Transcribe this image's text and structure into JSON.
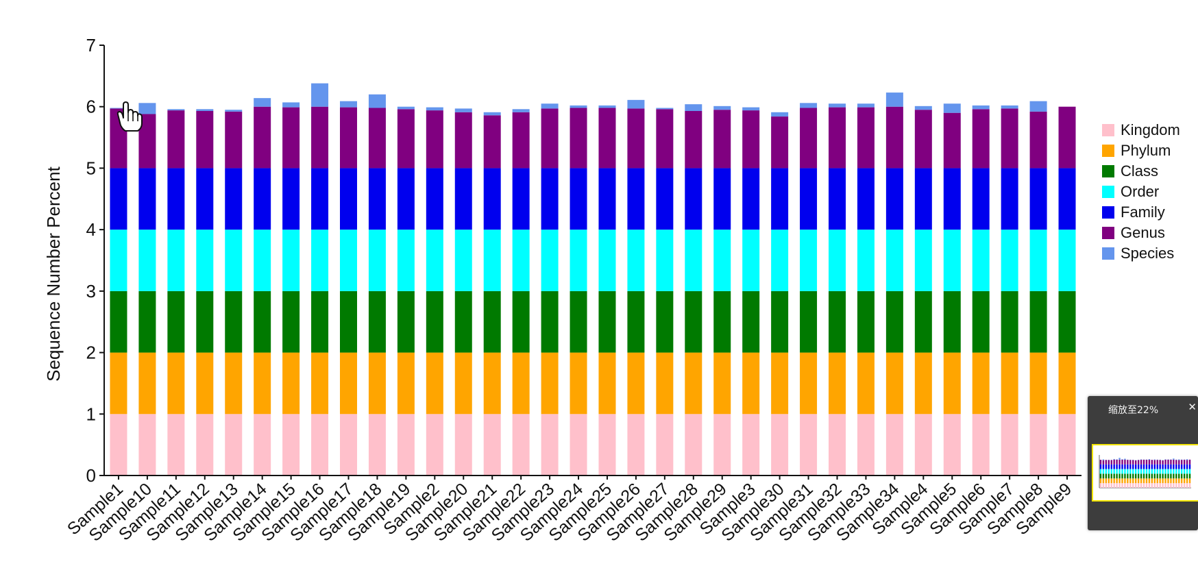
{
  "chart_data": {
    "type": "bar",
    "stacked": true,
    "title": "",
    "xlabel": "",
    "ylabel": "Sequence Number Percent",
    "ylim": [
      0,
      7
    ],
    "yticks": [
      0,
      1,
      2,
      3,
      4,
      5,
      6,
      7
    ],
    "grid": false,
    "legend_position": "right",
    "categories": [
      "Sample1",
      "Sample10",
      "Sample11",
      "Sample12",
      "Sample13",
      "Sample14",
      "Sample15",
      "Sample16",
      "Sample17",
      "Sample18",
      "Sample19",
      "Sample2",
      "Sample20",
      "Sample21",
      "Sample22",
      "Sample23",
      "Sample24",
      "Sample25",
      "Sample26",
      "Sample27",
      "Sample28",
      "Sample29",
      "Sample3",
      "Sample30",
      "Sample31",
      "Sample32",
      "Sample33",
      "Sample34",
      "Sample4",
      "Sample5",
      "Sample6",
      "Sample7",
      "Sample8",
      "Sample9"
    ],
    "series": [
      {
        "name": "Kingdom",
        "color": "#ffc0cb",
        "values": [
          1,
          1,
          1,
          1,
          1,
          1,
          1,
          1,
          1,
          1,
          1,
          1,
          1,
          1,
          1,
          1,
          1,
          1,
          1,
          1,
          1,
          1,
          1,
          1,
          1,
          1,
          1,
          1,
          1,
          1,
          1,
          1,
          1,
          1
        ]
      },
      {
        "name": "Phylum",
        "color": "#ffa500",
        "values": [
          1,
          1,
          1,
          1,
          1,
          1,
          1,
          1,
          1,
          1,
          1,
          1,
          1,
          1,
          1,
          1,
          1,
          1,
          1,
          1,
          1,
          1,
          1,
          1,
          1,
          1,
          1,
          1,
          1,
          1,
          1,
          1,
          1,
          1
        ]
      },
      {
        "name": "Class",
        "color": "#007a00",
        "values": [
          1,
          1,
          1,
          1,
          1,
          1,
          1,
          1,
          1,
          1,
          1,
          1,
          1,
          1,
          1,
          1,
          1,
          1,
          1,
          1,
          1,
          1,
          1,
          1,
          1,
          1,
          1,
          1,
          1,
          1,
          1,
          1,
          1,
          1
        ]
      },
      {
        "name": "Order",
        "color": "#00ffff",
        "values": [
          1,
          1,
          1,
          1,
          1,
          1,
          1,
          1,
          1,
          1,
          1,
          1,
          1,
          1,
          1,
          1,
          1,
          1,
          1,
          1,
          1,
          1,
          1,
          1,
          1,
          1,
          1,
          1,
          1,
          1,
          1,
          1,
          1,
          1
        ]
      },
      {
        "name": "Family",
        "color": "#0000ee",
        "values": [
          1,
          1,
          1,
          1,
          1,
          1,
          1,
          1,
          1,
          1,
          1,
          1,
          1,
          1,
          1,
          1,
          1,
          1,
          1,
          1,
          1,
          1,
          1,
          1,
          1,
          1,
          1,
          1,
          1,
          1,
          1,
          1,
          1,
          1
        ]
      },
      {
        "name": "Genus",
        "color": "#800080",
        "values": [
          0.97,
          0.88,
          0.94,
          0.93,
          0.92,
          1.0,
          0.99,
          1.0,
          0.99,
          0.98,
          0.96,
          0.94,
          0.91,
          0.86,
          0.91,
          0.97,
          0.98,
          0.98,
          0.97,
          0.96,
          0.93,
          0.95,
          0.94,
          0.84,
          0.98,
          0.99,
          0.99,
          1.0,
          0.95,
          0.9,
          0.96,
          0.97,
          0.92,
          1.0
        ]
      },
      {
        "name": "Species",
        "color": "#6495ed",
        "values": [
          0.01,
          0.18,
          0.02,
          0.03,
          0.03,
          0.14,
          0.08,
          0.38,
          0.1,
          0.22,
          0.04,
          0.05,
          0.06,
          0.05,
          0.05,
          0.08,
          0.04,
          0.04,
          0.14,
          0.02,
          0.11,
          0.06,
          0.05,
          0.07,
          0.08,
          0.06,
          0.06,
          0.23,
          0.06,
          0.15,
          0.06,
          0.05,
          0.17,
          0.0
        ]
      }
    ]
  },
  "zoom_panel": {
    "label": "缩放至22%",
    "close_icon": "close-icon",
    "cursor_icon": "hand-cursor-icon"
  }
}
